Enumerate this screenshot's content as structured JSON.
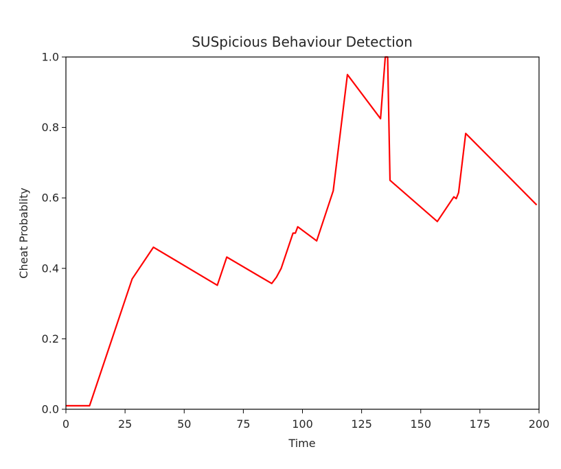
{
  "chart_data": {
    "type": "line",
    "title": "SUSpicious Behaviour Detection",
    "xlabel": "Time",
    "ylabel": "Cheat Probablity",
    "xlim": [
      0,
      200
    ],
    "ylim": [
      0,
      1.0
    ],
    "xticks": [
      0,
      25,
      50,
      75,
      100,
      125,
      150,
      175,
      200
    ],
    "xtick_labels": [
      "0",
      "25",
      "50",
      "75",
      "100",
      "125",
      "150",
      "175",
      "200"
    ],
    "yticks": [
      0.0,
      0.2,
      0.4,
      0.6,
      0.8,
      1.0
    ],
    "ytick_labels": [
      "0.0",
      "0.2",
      "0.4",
      "0.6",
      "0.8",
      "1.0"
    ],
    "grid": false,
    "legend": "none",
    "series": [
      {
        "color": "#ff0000",
        "points": [
          [
            0,
            0.01
          ],
          [
            10,
            0.01
          ],
          [
            28,
            0.37
          ],
          [
            37,
            0.46
          ],
          [
            64,
            0.352
          ],
          [
            68,
            0.432
          ],
          [
            87,
            0.357
          ],
          [
            89,
            0.375
          ],
          [
            91,
            0.4
          ],
          [
            96,
            0.5
          ],
          [
            97,
            0.5
          ],
          [
            98,
            0.518
          ],
          [
            106,
            0.478
          ],
          [
            113,
            0.62
          ],
          [
            119,
            0.95
          ],
          [
            133,
            0.825
          ],
          [
            135,
            1.0
          ],
          [
            136,
            1.0
          ],
          [
            137,
            0.65
          ],
          [
            157,
            0.533
          ],
          [
            164,
            0.603
          ],
          [
            165,
            0.598
          ],
          [
            166,
            0.615
          ],
          [
            169,
            0.783
          ],
          [
            185,
            0.675
          ],
          [
            199,
            0.58
          ]
        ]
      }
    ]
  }
}
